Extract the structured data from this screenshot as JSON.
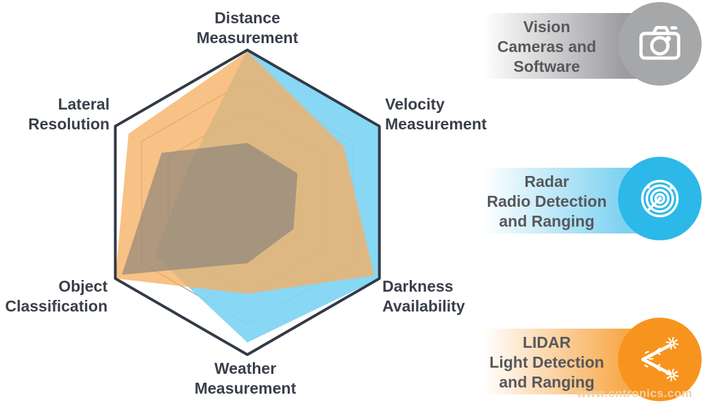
{
  "page": {
    "background": "#FFFFFF"
  },
  "chart_data": {
    "type": "radar",
    "title": "",
    "axes": [
      {
        "id": "distance",
        "label": "Distance\nMeasurement"
      },
      {
        "id": "velocity",
        "label": "Velocity\nMeasurement"
      },
      {
        "id": "darkness",
        "label": "Darkness\nAvailability"
      },
      {
        "id": "weather",
        "label": "Weather\nMeasurement"
      },
      {
        "id": "object_classification",
        "label": "Object\nClassification"
      },
      {
        "id": "lateral_resolution",
        "label": "Lateral\nResolution"
      }
    ],
    "scale": {
      "min": 0,
      "max": 100,
      "rings": [
        20,
        40,
        60,
        80,
        100
      ]
    },
    "grid": {
      "ring_color": "#A9A49C",
      "ring_width": 1.4,
      "border_color": "#323A46",
      "border_width": 4
    },
    "legend_position": "right",
    "series": [
      {
        "name": "Radar",
        "color": "#7FD4F4",
        "opacity": 0.93,
        "values": [
          100,
          100,
          100,
          92,
          70,
          45
        ]
      },
      {
        "name": "LIDAR",
        "color": "#F6AF63",
        "opacity": 0.78,
        "values": [
          99,
          73,
          96,
          60,
          100,
          90
        ]
      },
      {
        "name": "Vision",
        "color": "#83807A",
        "opacity": 0.62,
        "values": [
          39,
          38,
          35,
          40,
          95,
          65
        ]
      }
    ]
  },
  "legend": {
    "items": [
      {
        "id": "vision",
        "label": "Vision\nCameras and\nSoftware",
        "bar_color": "#9D9DA0",
        "circle_color": "#A6A7A9",
        "icon": "camera-icon"
      },
      {
        "id": "radar",
        "label": "Radar\nRadio Detection\nand Ranging",
        "bar_color": "#7ED2F1",
        "circle_color": "#2CB8E8",
        "icon": "radar-sweep-icon"
      },
      {
        "id": "lidar",
        "label": "LIDAR\nLight Detection\nand Ranging",
        "bar_color": "#F8A94C",
        "circle_color": "#F7941E",
        "icon": "lidar-beams-icon"
      }
    ]
  },
  "watermark": {
    "text": "www.cntronics.com",
    "color": "#F3D1A6"
  }
}
